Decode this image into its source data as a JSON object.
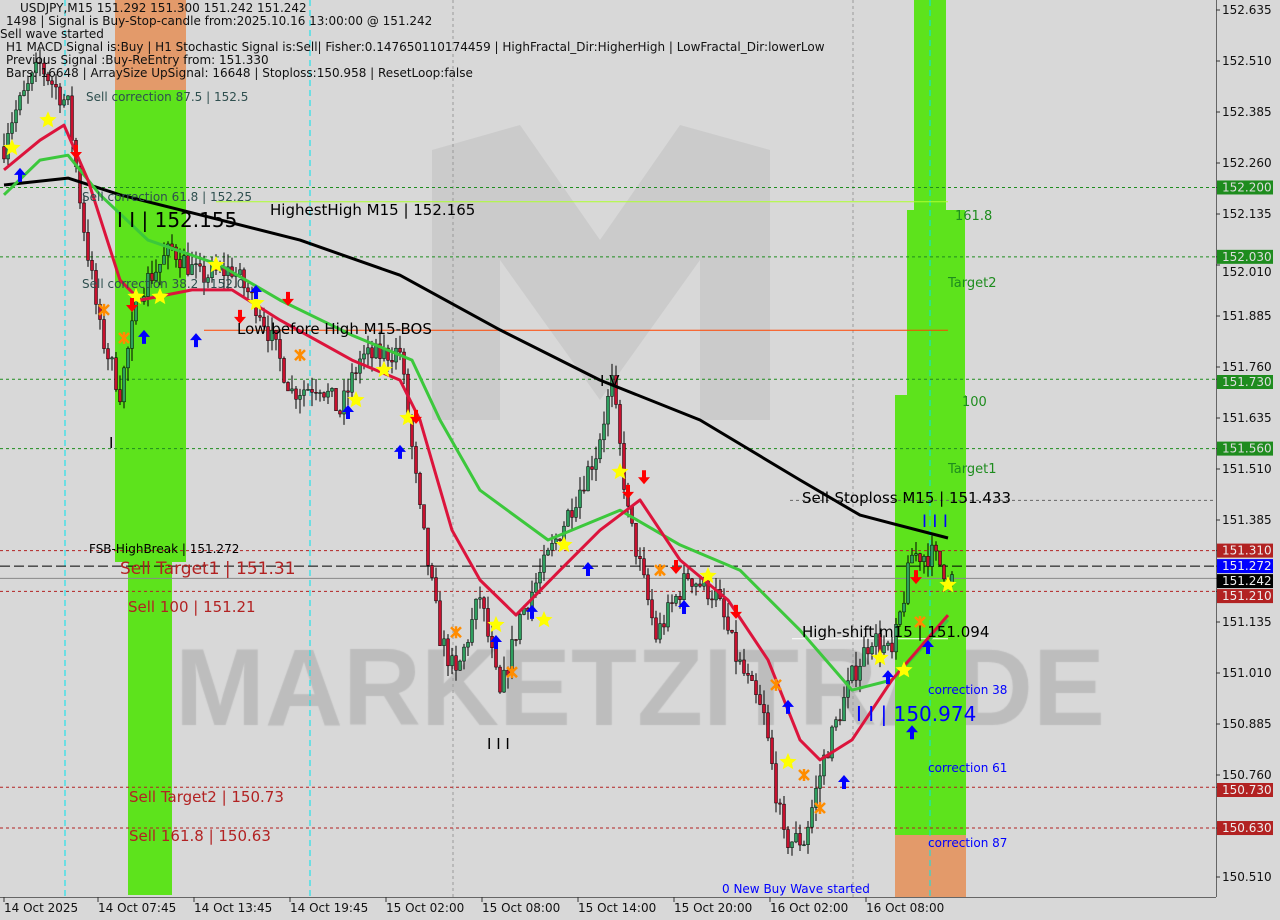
{
  "header": {
    "symbol_line": "USDJPY,M15  151.292 151.300 151.242 151.242",
    "signal_line": "1498 | Signal is Buy-Stop-candle from:2025.10.16 13:00:00 @ 151.242",
    "wave_line": "Sell wave started",
    "macd_line": "H1 MACD Signal is:Buy | H1 Stochastic Signal is:Sell| Fisher:0.147650110174459 | HighFractal_Dir:HigherHigh | LowFractal_Dir:lowerLow",
    "prev_signal_line": "Previous Signal :Buy-ReEntry from: 151.330",
    "bars_line": "Bars: 16648 | ArraySize UpSignal: 16648 | Stoploss:150.958 | ResetLoop:false"
  },
  "annotations": {
    "sell_corr_875": "Sell correction 87.5 | 152.5",
    "sell_corr_618": "Sell correction 61.8 | 152.25",
    "sell_corr_382": "Sell correction 38.2 | 152.0",
    "ii_high": "I I | 152.155",
    "highest_high": "HighestHigh   M15 | 152.165",
    "low_before_high": "Low before High   M15-BOS",
    "iv": "I V",
    "sell_stoploss": "Sell-Stoploss M15 | 151.433",
    "fib_1618": "161.8",
    "target2": "Target2",
    "fib_100": "100",
    "target1": "Target1",
    "fsb_high_break": "FSB-HighBreak | 151.272",
    "sell_target1": "Sell Target1 | 151.31",
    "sell_100": "Sell 100 | 151.21",
    "sell_target2": "Sell Target2 | 150.73",
    "sell_1618": "Sell 161.8 | 150.63",
    "high_shift": "High-shift m15 | 151.094",
    "ii_low": "I I | 150.974",
    "correction_38": "correction 38",
    "correction_61": "correction 61",
    "correction_87": "correction 87",
    "new_buy_wave": "0 New Buy Wave started",
    "iii_low": "I I I",
    "iii_right": "I I I",
    "i_left": "I",
    "watermark": "MARKETZITRADE"
  },
  "colors": {
    "background": "#d8d8d8",
    "zone_green": "#5de31c",
    "zone_orange": "#e39a6a",
    "ma_black": "#000000",
    "ma_green": "#3cc83c",
    "ma_red": "#dc143c",
    "level_green": "#1e8c1e",
    "level_red": "#b22222",
    "level_blue": "#0000ff",
    "text_slate": "#2f4f4f"
  },
  "chart_data": {
    "type": "candlestick",
    "symbol": "USDJPY",
    "timeframe": "M15",
    "ylim": [
      150.45,
      152.7
    ],
    "y_ticks": [
      "152.635",
      "152.510",
      "152.385",
      "152.260",
      "152.135",
      "152.010",
      "151.885",
      "151.760",
      "151.635",
      "151.510",
      "151.385",
      "151.135",
      "151.010",
      "150.885",
      "150.760",
      "150.510"
    ],
    "x_ticks": [
      "14 Oct 2025",
      "14 Oct 07:45",
      "14 Oct 13:45",
      "14 Oct 19:45",
      "15 Oct 02:00",
      "15 Oct 08:00",
      "15 Oct 14:00",
      "15 Oct 20:00",
      "16 Oct 02:00",
      "16 Oct 08:00"
    ],
    "price_tags": [
      {
        "price": "152.200",
        "kind": "green"
      },
      {
        "price": "152.030",
        "kind": "green"
      },
      {
        "price": "151.730",
        "kind": "green"
      },
      {
        "price": "151.560",
        "kind": "green"
      },
      {
        "price": "151.310",
        "kind": "red"
      },
      {
        "price": "151.272",
        "kind": "blue"
      },
      {
        "price": "151.242",
        "kind": "black"
      },
      {
        "price": "151.210",
        "kind": "red"
      },
      {
        "price": "150.730",
        "kind": "red"
      },
      {
        "price": "150.630",
        "kind": "red"
      }
    ],
    "price_path": [
      [
        "2025-10-14 01:45",
        152.3
      ],
      [
        "2025-10-14 02:00",
        152.35
      ],
      [
        "2025-10-14 04:00",
        152.5
      ],
      [
        "2025-10-14 05:45",
        152.4
      ],
      [
        "2025-10-14 06:45",
        152.1
      ],
      [
        "2025-10-14 07:45",
        151.85
      ],
      [
        "2025-10-14 09:00",
        151.7
      ],
      [
        "2025-10-14 10:15",
        151.95
      ],
      [
        "2025-10-14 12:15",
        152.05
      ],
      [
        "2025-10-14 14:00",
        151.98
      ],
      [
        "2025-10-14 16:00",
        152.0
      ],
      [
        "2025-10-14 17:45",
        151.9
      ],
      [
        "2025-10-14 19:45",
        151.7
      ],
      [
        "2025-10-14 21:30",
        151.72
      ],
      [
        "2025-10-14 22:45",
        151.65
      ],
      [
        "2025-10-15 00:00",
        151.78
      ],
      [
        "2025-10-15 02:30",
        151.8
      ],
      [
        "2025-10-15 03:45",
        151.4
      ],
      [
        "2025-10-15 05:00",
        151.1
      ],
      [
        "2025-10-15 06:00",
        151.0
      ],
      [
        "2025-10-15 07:30",
        151.2
      ],
      [
        "2025-10-15 08:45",
        150.95
      ],
      [
        "2025-10-15 10:00",
        151.15
      ],
      [
        "2025-10-15 11:15",
        151.25
      ],
      [
        "2025-10-15 13:00",
        151.4
      ],
      [
        "2025-10-15 14:45",
        151.55
      ],
      [
        "2025-10-15 15:45",
        151.72
      ],
      [
        "2025-10-15 16:45",
        151.4
      ],
      [
        "2025-10-15 18:30",
        151.1
      ],
      [
        "2025-10-15 20:30",
        151.25
      ],
      [
        "2025-10-15 22:15",
        151.2
      ],
      [
        "2025-10-15 23:30",
        151.05
      ],
      [
        "2025-10-16 01:15",
        150.9
      ],
      [
        "2025-10-16 02:30",
        150.6
      ],
      [
        "2025-10-16 03:45",
        150.6
      ],
      [
        "2025-10-16 05:00",
        150.8
      ],
      [
        "2025-10-16 06:45",
        151.0
      ],
      [
        "2025-10-16 08:00",
        151.1
      ],
      [
        "2025-10-16 09:15",
        151.05
      ],
      [
        "2025-10-16 10:30",
        151.3
      ],
      [
        "2025-10-16 11:45",
        151.3
      ],
      [
        "2025-10-16 13:00",
        151.242
      ]
    ],
    "ma_black": [
      [
        "2025-10-14 01:45",
        152.206
      ],
      [
        "2025-10-14 05:45",
        152.223
      ],
      [
        "2025-10-14 09:00",
        152.182
      ],
      [
        "2025-10-14 14:00",
        152.133
      ],
      [
        "2025-10-14 20:15",
        152.071
      ],
      [
        "2025-10-15 02:30",
        151.985
      ],
      [
        "2025-10-15 08:45",
        151.851
      ],
      [
        "2025-10-15 15:00",
        151.728
      ],
      [
        "2025-10-15 21:15",
        151.63
      ],
      [
        "2025-10-16 03:30",
        151.483
      ],
      [
        "2025-10-16 07:15",
        151.397
      ],
      [
        "2025-10-16 12:45",
        151.341
      ]
    ],
    "ma_green": [
      [
        "2025-10-14 01:45",
        152.182
      ],
      [
        "2025-10-14 04:00",
        152.267
      ],
      [
        "2025-10-14 05:45",
        152.279
      ],
      [
        "2025-10-14 07:45",
        152.182
      ],
      [
        "2025-10-14 10:45",
        152.071
      ],
      [
        "2025-10-14 15:15",
        152.01
      ],
      [
        "2025-10-14 19:00",
        151.924
      ],
      [
        "2025-10-14 23:30",
        151.838
      ],
      [
        "2025-10-15 03:15",
        151.777
      ],
      [
        "2025-10-15 05:00",
        151.63
      ],
      [
        "2025-10-15 07:30",
        151.458
      ],
      [
        "2025-10-15 11:45",
        151.336
      ],
      [
        "2025-10-15 16:15",
        151.409
      ],
      [
        "2025-10-15 20:00",
        151.324
      ],
      [
        "2025-10-15 23:45",
        151.262
      ],
      [
        "2025-10-16 03:30",
        151.115
      ],
      [
        "2025-10-16 06:45",
        150.968
      ],
      [
        "2025-10-16 09:15",
        150.993
      ],
      [
        "2025-10-16 12:45",
        151.14
      ]
    ],
    "ma_red": [
      [
        "2025-10-14 01:45",
        152.243
      ],
      [
        "2025-10-14 04:00",
        152.316
      ],
      [
        "2025-10-14 05:30",
        152.353
      ],
      [
        "2025-10-14 07:00",
        152.218
      ],
      [
        "2025-10-14 09:00",
        151.973
      ],
      [
        "2025-10-14 10:15",
        151.924
      ],
      [
        "2025-10-14 13:30",
        151.949
      ],
      [
        "2025-10-14 16:00",
        151.949
      ],
      [
        "2025-10-14 19:00",
        151.875
      ],
      [
        "2025-10-14 23:30",
        151.777
      ],
      [
        "2025-10-15 02:30",
        151.728
      ],
      [
        "2025-10-15 03:45",
        151.63
      ],
      [
        "2025-10-15 05:45",
        151.36
      ],
      [
        "2025-10-15 07:30",
        151.238
      ],
      [
        "2025-10-15 09:45",
        151.152
      ],
      [
        "2025-10-15 12:30",
        151.262
      ],
      [
        "2025-10-15 15:00",
        151.36
      ],
      [
        "2025-10-15 17:30",
        151.434
      ],
      [
        "2025-10-15 20:00",
        151.287
      ],
      [
        "2025-10-15 23:00",
        151.189
      ],
      [
        "2025-10-16 01:30",
        151.042
      ],
      [
        "2025-10-16 03:30",
        150.846
      ],
      [
        "2025-10-16 04:45",
        150.797
      ],
      [
        "2025-10-16 06:45",
        150.846
      ],
      [
        "2025-10-16 09:15",
        150.993
      ],
      [
        "2025-10-16 12:45",
        151.152
      ]
    ],
    "levels": [
      {
        "price": 152.2,
        "kind": "green"
      },
      {
        "price": 152.03,
        "kind": "green"
      },
      {
        "price": 151.73,
        "kind": "green"
      },
      {
        "price": 151.56,
        "kind": "green"
      },
      {
        "price": 151.433,
        "kind": "stoploss"
      },
      {
        "price": 151.31,
        "kind": "red"
      },
      {
        "price": 151.272,
        "kind": "blue"
      },
      {
        "price": 151.242,
        "kind": "bid"
      },
      {
        "price": 151.21,
        "kind": "red"
      },
      {
        "price": 150.73,
        "kind": "red"
      },
      {
        "price": 150.63,
        "kind": "red"
      }
    ],
    "segments": [
      {
        "kind": "highest_high",
        "price": 152.165,
        "from": "2025-10-14 15:00",
        "to": "2025-10-16 12:45"
      },
      {
        "kind": "low_before_high",
        "price": 151.85,
        "from": "2025-10-14 14:15",
        "to": "2025-10-16 12:45"
      },
      {
        "kind": "high_shift",
        "price": 151.094,
        "from": "2025-10-16 03:00",
        "to": "2025-10-16 12:45"
      }
    ],
    "stars": [
      [
        "2025-10-14 02:15",
        152.297
      ],
      [
        "2025-10-14 04:30",
        152.365
      ],
      [
        "2025-10-14 10:00",
        151.932
      ],
      [
        "2025-10-14 11:30",
        151.932
      ],
      [
        "2025-10-14 15:00",
        152.01
      ],
      [
        "2025-10-14 17:30",
        151.917
      ],
      [
        "2025-10-14 23:45",
        151.679
      ],
      [
        "2025-10-15 01:30",
        151.753
      ],
      [
        "2025-10-15 03:00",
        151.635
      ],
      [
        "2025-10-15 08:30",
        151.128
      ],
      [
        "2025-10-15 11:30",
        151.14
      ],
      [
        "2025-10-15 12:45",
        151.324
      ],
      [
        "2025-10-15 16:15",
        151.503
      ],
      [
        "2025-10-15 21:45",
        151.248
      ],
      [
        "2025-10-16 02:45",
        150.792
      ],
      [
        "2025-10-16 08:30",
        151.047
      ],
      [
        "2025-10-16 10:00",
        151.017
      ],
      [
        "2025-10-16 12:45",
        151.226
      ]
    ],
    "buy_arrows": [
      [
        "2025-10-14 02:45",
        152.248
      ],
      [
        "2025-10-14 10:30",
        151.851
      ],
      [
        "2025-10-14 13:45",
        151.843
      ],
      [
        "2025-10-14 17:30",
        151.961
      ],
      [
        "2025-10-14 23:15",
        151.667
      ],
      [
        "2025-10-15 02:30",
        151.569
      ],
      [
        "2025-10-15 08:30",
        151.103
      ],
      [
        "2025-10-15 10:45",
        151.177
      ],
      [
        "2025-10-15 14:15",
        151.282
      ],
      [
        "2025-10-15 20:15",
        151.189
      ],
      [
        "2025-10-16 02:45",
        150.944
      ],
      [
        "2025-10-16 06:15",
        150.76
      ],
      [
        "2025-10-16 09:00",
        151.017
      ],
      [
        "2025-10-16 10:30",
        150.882
      ],
      [
        "2025-10-16 11:30",
        151.091
      ]
    ],
    "sell_arrows": [
      [
        "2025-10-14 06:15",
        152.304
      ],
      [
        "2025-10-14 09:45",
        151.929
      ],
      [
        "2025-10-14 16:30",
        151.9
      ],
      [
        "2025-10-14 19:30",
        151.944
      ],
      [
        "2025-10-15 03:30",
        151.655
      ],
      [
        "2025-10-15 16:45",
        151.471
      ],
      [
        "2025-10-15 17:45",
        151.507
      ],
      [
        "2025-10-15 19:45",
        151.287
      ],
      [
        "2025-10-15 23:30",
        151.177
      ],
      [
        "2025-10-16 10:45",
        151.262
      ]
    ],
    "cross_marks": [
      [
        "2025-10-14 08:00",
        151.9
      ],
      [
        "2025-10-14 09:15",
        151.831
      ],
      [
        "2025-10-14 20:15",
        151.789
      ],
      [
        "2025-10-15 06:00",
        151.11
      ],
      [
        "2025-10-15 09:30",
        151.012
      ],
      [
        "2025-10-15 18:45",
        151.262
      ],
      [
        "2025-10-16 02:00",
        150.981
      ],
      [
        "2025-10-16 03:45",
        150.76
      ],
      [
        "2025-10-16 04:45",
        150.679
      ],
      [
        "2025-10-16 11:00",
        151.135
      ]
    ]
  }
}
